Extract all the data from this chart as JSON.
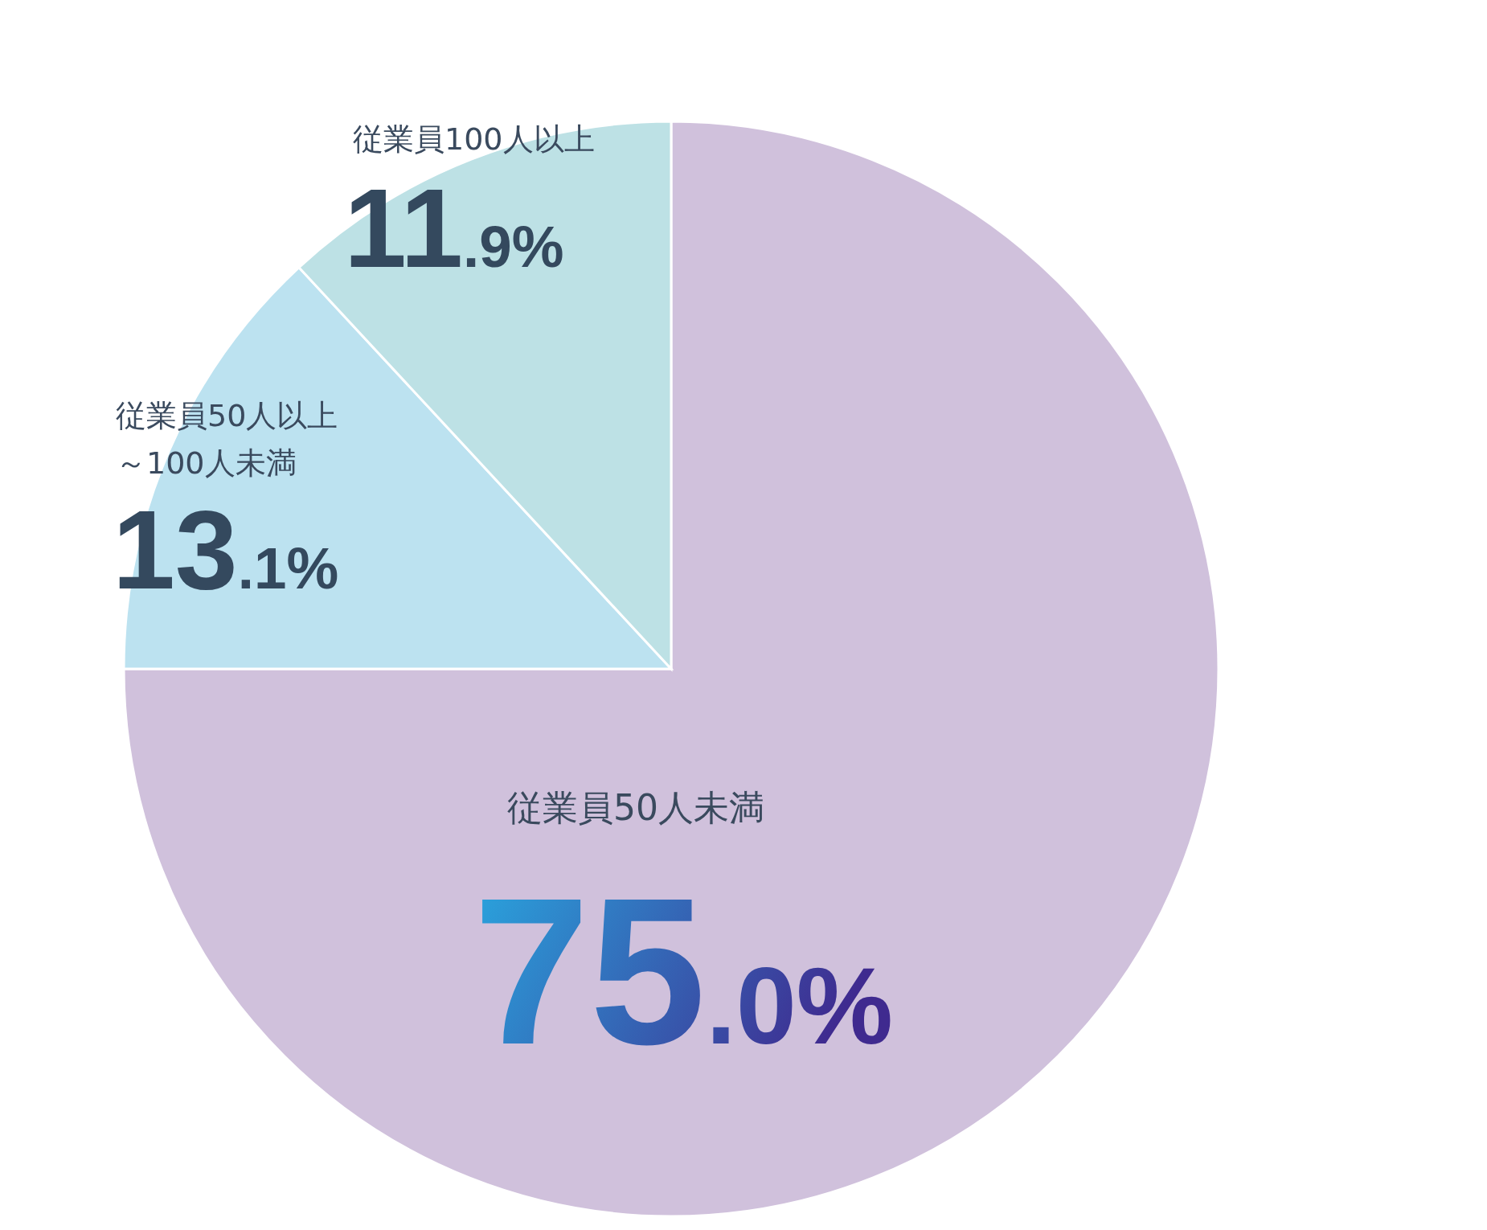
{
  "chart_data": {
    "type": "pie",
    "categories": [
      "従業員50人未満",
      "従業員50人以上～100人未満",
      "従業員100人以上"
    ],
    "values": [
      75.0,
      13.1,
      11.9
    ],
    "colors": [
      "#d0c1dc",
      "#bce2f0",
      "#bde1e5"
    ],
    "value_labels": [
      "75.0%",
      "13.1%",
      "11.9%"
    ],
    "legend": false
  }
}
